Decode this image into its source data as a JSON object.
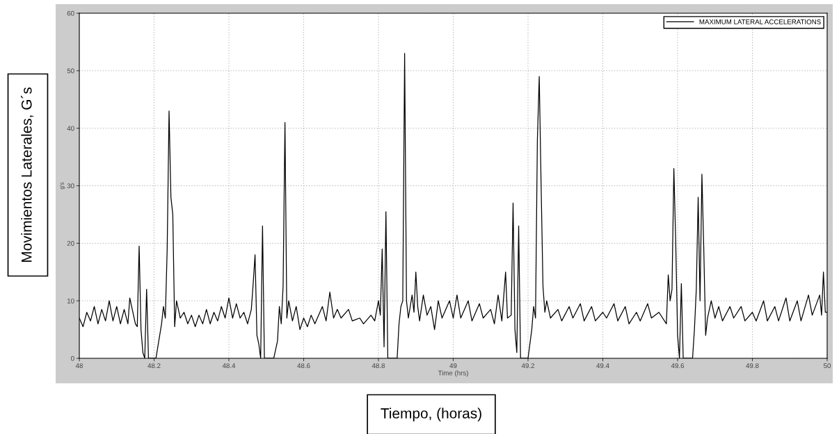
{
  "chart_data": {
    "type": "line",
    "xlabel": "Time (hrs)",
    "ylabel": "g's",
    "annotations": [
      "Movimientos Laterales, G´s",
      "Tiempo, (horas)"
    ],
    "xlim": [
      48,
      50
    ],
    "xticks": [
      48,
      48.2,
      48.4,
      48.6,
      48.8,
      49,
      49.2,
      49.4,
      49.6,
      49.8,
      50
    ],
    "ylim": [
      0,
      60
    ],
    "yticks": [
      0,
      10,
      20,
      30,
      40,
      50,
      60
    ],
    "grid": true,
    "legend": "top right",
    "line_style": "solid",
    "marker": "none",
    "series": [
      {
        "name": "MAXIMUM LATERAL ACCELERATIONS",
        "color": "#000000",
        "x": [
          48.0,
          48.01,
          48.02,
          48.03,
          48.04,
          48.05,
          48.06,
          48.07,
          48.08,
          48.09,
          48.1,
          48.11,
          48.12,
          48.13,
          48.135,
          48.15,
          48.155,
          48.16,
          48.165,
          48.17,
          48.175,
          48.18,
          48.185,
          48.205,
          48.215,
          48.22,
          48.225,
          48.23,
          48.235,
          48.24,
          48.245,
          48.25,
          48.255,
          48.26,
          48.27,
          48.28,
          48.29,
          48.3,
          48.31,
          48.32,
          48.33,
          48.34,
          48.35,
          48.36,
          48.37,
          48.38,
          48.39,
          48.4,
          48.41,
          48.42,
          48.43,
          48.44,
          48.45,
          48.46,
          48.465,
          48.47,
          48.475,
          48.48,
          48.485,
          48.49,
          48.495,
          48.52,
          48.53,
          48.535,
          48.54,
          48.545,
          48.55,
          48.555,
          48.56,
          48.57,
          48.58,
          48.59,
          48.6,
          48.61,
          48.62,
          48.63,
          48.65,
          48.66,
          48.67,
          48.68,
          48.69,
          48.7,
          48.72,
          48.73,
          48.75,
          48.76,
          48.78,
          48.79,
          48.8,
          48.805,
          48.81,
          48.815,
          48.82,
          48.825,
          48.85,
          48.855,
          48.86,
          48.865,
          48.87,
          48.875,
          48.88,
          48.89,
          48.895,
          48.9,
          48.905,
          48.91,
          48.92,
          48.93,
          48.94,
          48.95,
          48.96,
          48.97,
          48.99,
          49.0,
          49.01,
          49.02,
          49.04,
          49.05,
          49.07,
          49.08,
          49.1,
          49.11,
          49.12,
          49.13,
          49.14,
          49.145,
          49.155,
          49.16,
          49.165,
          49.17,
          49.175,
          49.18,
          49.2,
          49.21,
          49.215,
          49.22,
          49.225,
          49.23,
          49.235,
          49.24,
          49.245,
          49.25,
          49.26,
          49.28,
          49.29,
          49.31,
          49.32,
          49.34,
          49.35,
          49.37,
          49.38,
          49.4,
          49.41,
          49.43,
          49.44,
          49.46,
          49.47,
          49.49,
          49.5,
          49.52,
          49.53,
          49.55,
          49.57,
          49.575,
          49.58,
          49.585,
          49.59,
          49.595,
          49.6,
          49.605,
          49.61,
          49.615,
          49.64,
          49.645,
          49.65,
          49.655,
          49.66,
          49.665,
          49.67,
          49.675,
          49.68,
          49.69,
          49.7,
          49.71,
          49.72,
          49.74,
          49.75,
          49.77,
          49.78,
          49.8,
          49.81,
          49.83,
          49.84,
          49.86,
          49.87,
          49.89,
          49.9,
          49.92,
          49.93,
          49.95,
          49.96,
          49.98,
          49.985,
          49.99,
          49.995,
          50.0
        ],
        "values": [
          7,
          5.5,
          8,
          6.5,
          9,
          6,
          8.5,
          6.5,
          10,
          6.5,
          9,
          6,
          8.5,
          6,
          10.5,
          6,
          5.5,
          19.5,
          5,
          1,
          0,
          12,
          0,
          0,
          4,
          6,
          9,
          7,
          19,
          43,
          28,
          25,
          5.5,
          10,
          7,
          8,
          6,
          7.5,
          5.5,
          7.5,
          6,
          8.5,
          6,
          8,
          6.5,
          9,
          7,
          10.5,
          7,
          9.5,
          7,
          8,
          6,
          8.5,
          13,
          18,
          4,
          2.5,
          0,
          23,
          0,
          0,
          3,
          9,
          6,
          12.5,
          41,
          7,
          10,
          6.5,
          9,
          5,
          7,
          5.5,
          7.5,
          6,
          9,
          6.5,
          11.5,
          7,
          8.5,
          7,
          8.5,
          6.5,
          7,
          6,
          7.5,
          6.5,
          10,
          7.5,
          19,
          2,
          25.5,
          0,
          0,
          6,
          9,
          10,
          53,
          10,
          7,
          11,
          8,
          15,
          9,
          6.5,
          11,
          7.5,
          9,
          5,
          10,
          7,
          10,
          7,
          11,
          7,
          10,
          6.5,
          9.5,
          7,
          8.5,
          6,
          11,
          6.5,
          15,
          7,
          7.5,
          27,
          5,
          1,
          23,
          0,
          0,
          5,
          9,
          7,
          38,
          49,
          30,
          12.5,
          8,
          10,
          7,
          8.5,
          6.5,
          9,
          7,
          9.5,
          6.5,
          9,
          6.5,
          8,
          7,
          9.5,
          6.5,
          9,
          6,
          8,
          6.5,
          9.5,
          7,
          8,
          6,
          14.5,
          10,
          12,
          33,
          20,
          4,
          0,
          13,
          0,
          0,
          5,
          12,
          28,
          10,
          32,
          19,
          4,
          7,
          10,
          7,
          9,
          6.5,
          9,
          7,
          9,
          6.5,
          8,
          6.5,
          10,
          6.5,
          9,
          6.5,
          10.5,
          6.5,
          10,
          6.5,
          11,
          7.5,
          11,
          7.5,
          15,
          8,
          8
        ]
      }
    ]
  }
}
